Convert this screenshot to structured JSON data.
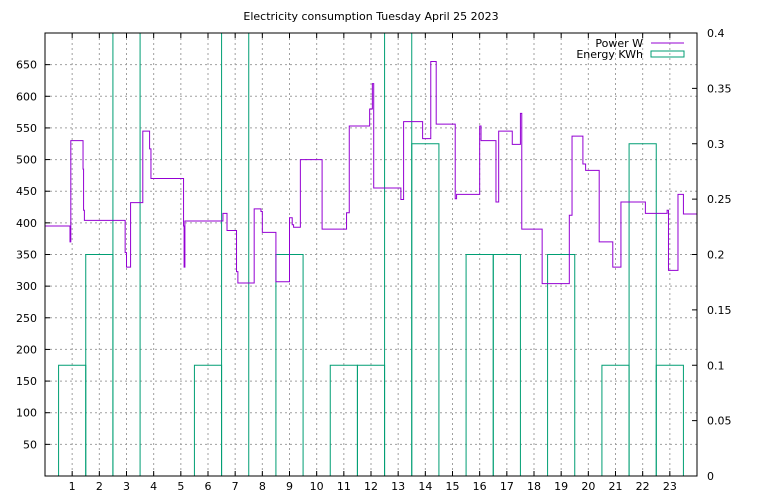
{
  "chart_data": {
    "type": "line",
    "title": "Electricity consumption Tuesday April 25 2023",
    "xlabel": "",
    "ylabel": "",
    "y2label": "",
    "xlim": [
      0,
      24
    ],
    "ylim": [
      0,
      700
    ],
    "y2lim": [
      0,
      0.4
    ],
    "xticks": [
      1,
      2,
      3,
      4,
      5,
      6,
      7,
      8,
      9,
      10,
      11,
      12,
      13,
      14,
      15,
      16,
      17,
      18,
      19,
      20,
      21,
      22,
      23
    ],
    "yticks": [
      50,
      100,
      150,
      200,
      250,
      300,
      350,
      400,
      450,
      500,
      550,
      600,
      650
    ],
    "y2ticks": [
      "0",
      "0.05",
      "0.1",
      "0.15",
      "0.2",
      "0.25",
      "0.3",
      "0.35",
      "0.4"
    ],
    "grid": true,
    "legend_position": "top-right",
    "colors": {
      "power": "#9400d3",
      "energy": "#009e73"
    },
    "series": [
      {
        "name": "Power W",
        "axis": "y",
        "style": "step-line",
        "x": [
          0,
          0.92,
          0.95,
          1.4,
          1.42,
          1.45,
          2.5,
          2.95,
          3.0,
          3.15,
          3.6,
          3.7,
          3.85,
          3.9,
          5.1,
          5.12,
          5.15,
          6.3,
          6.55,
          6.7,
          7.05,
          7.1,
          7.7,
          7.95,
          8.0,
          8.5,
          9.0,
          9.1,
          9.15,
          9.4,
          10.2,
          11.1,
          11.2,
          11.95,
          12.05,
          12.1,
          13.1,
          13.15,
          13.2,
          13.9,
          13.95,
          14.2,
          14.4,
          14.7,
          15.1,
          15.15,
          16.0,
          16.05,
          16.6,
          16.7,
          17.2,
          17.5,
          17.55,
          18.25,
          18.3,
          19.2,
          19.3,
          19.4,
          19.8,
          19.9,
          20.4,
          20.6,
          20.9,
          21.2,
          22.1,
          22.9,
          22.95,
          23.3,
          23.5,
          24.0
        ],
        "y": [
          395,
          370,
          530,
          485,
          420,
          404,
          404,
          353,
          330,
          432,
          545,
          545,
          517,
          470,
          395,
          330,
          403,
          403,
          415,
          388,
          323,
          305,
          422,
          418,
          385,
          307,
          408,
          397,
          393,
          500,
          390,
          416,
          553,
          580,
          620,
          455,
          437,
          437,
          560,
          533,
          533,
          655,
          556,
          556,
          438,
          445,
          553,
          530,
          433,
          545,
          524,
          573,
          390,
          390,
          304,
          304,
          412,
          537,
          493,
          483,
          370,
          370,
          330,
          433,
          415,
          420,
          325,
          445,
          414,
          414
        ]
      },
      {
        "name": "Energy KWh",
        "axis": "y2",
        "style": "histeps",
        "x": [
          1,
          2,
          3,
          4,
          5,
          6,
          7,
          8,
          9,
          10,
          11,
          12,
          13,
          14,
          15,
          16,
          17,
          18,
          19,
          20,
          21,
          22,
          23
        ],
        "y": [
          0.1,
          0.2,
          0.4,
          0,
          0,
          0.1,
          0.4,
          0,
          0.2,
          0,
          0.1,
          0.1,
          0.4,
          0.3,
          0,
          0.2,
          0.2,
          0,
          0.2,
          0,
          0.1,
          0.3,
          0.1
        ]
      }
    ]
  }
}
